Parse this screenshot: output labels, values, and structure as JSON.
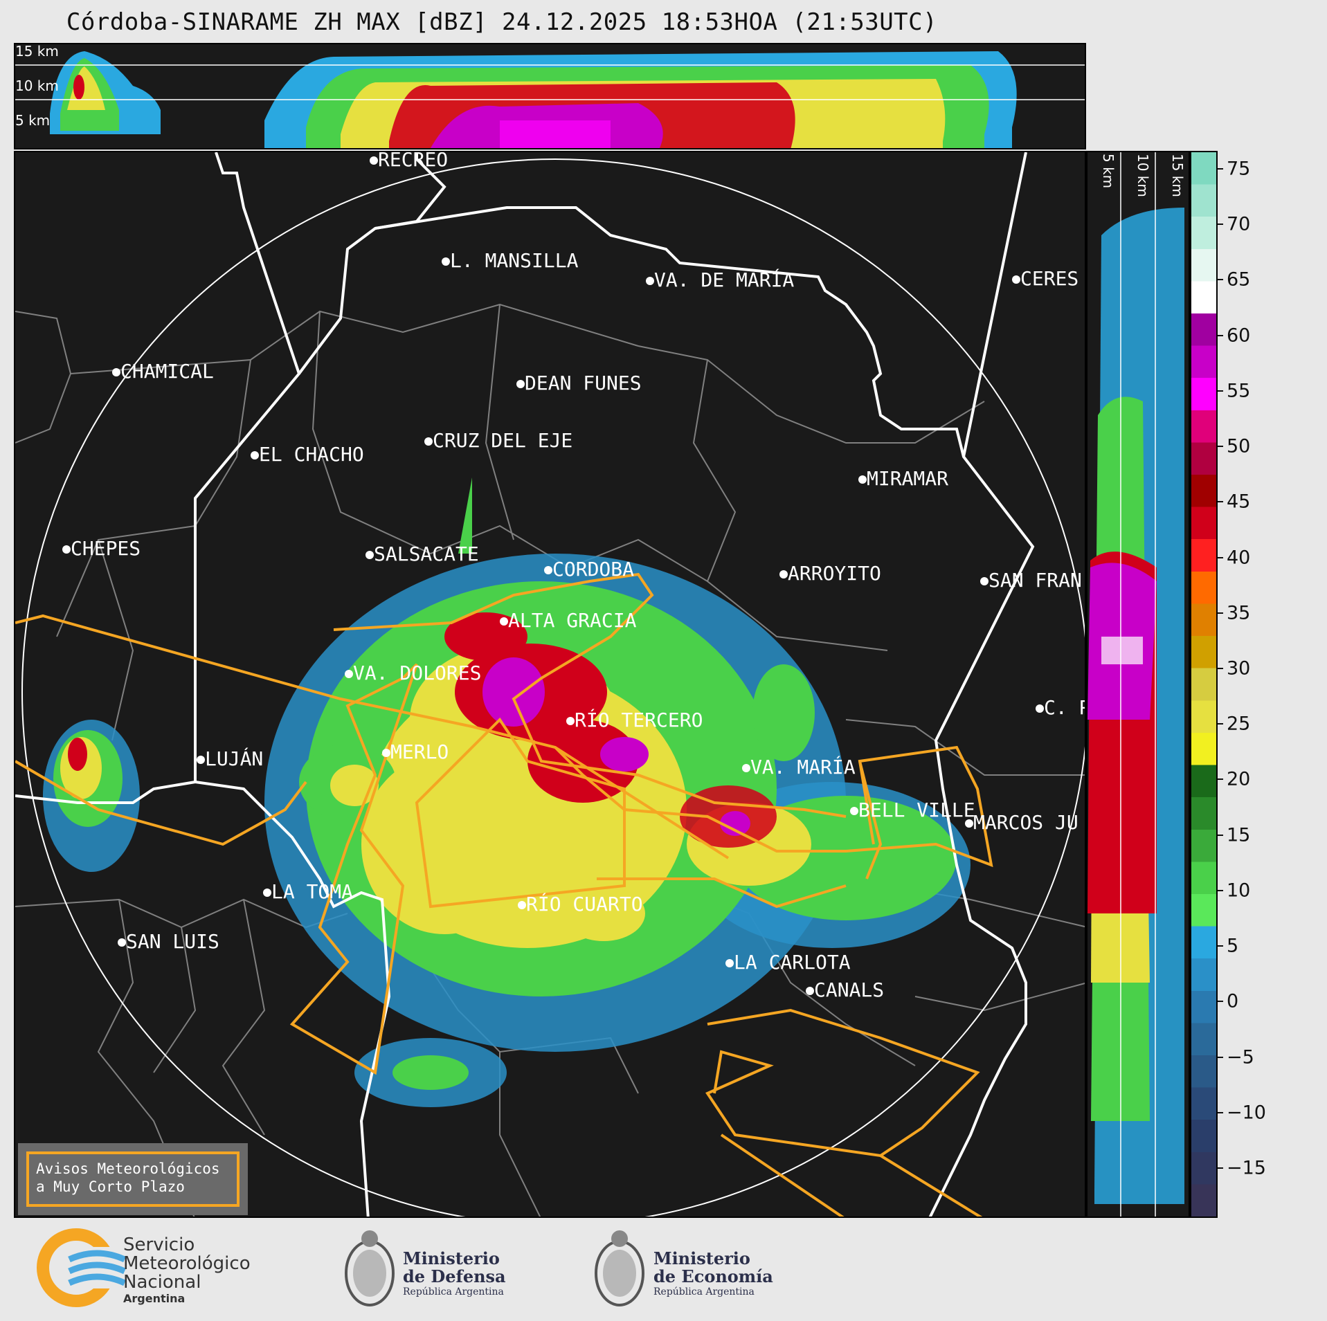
{
  "title": "Córdoba-SINARAME ZH MAX [dBZ] 24.12.2025 18:53HOA (21:53UTC)",
  "top_panel": {
    "altitude_labels": [
      "15 km",
      "10 km",
      "5 km"
    ]
  },
  "side_panel": {
    "altitude_labels": [
      "5 km",
      "10 km",
      "15 km"
    ]
  },
  "colorbar": {
    "ticks": [
      "75",
      "70",
      "65",
      "60",
      "55",
      "50",
      "45",
      "40",
      "35",
      "30",
      "25",
      "20",
      "15",
      "10",
      "5",
      "0",
      "−5",
      "−10",
      "−15"
    ],
    "colors": [
      "#7fd9c0",
      "#9fe3cf",
      "#bfeede",
      "#e6f7f1",
      "#ffffff",
      "#a000a0",
      "#c800c8",
      "#ff00ff",
      "#e0007a",
      "#b00040",
      "#a00000",
      "#d0001a",
      "#ff2020",
      "#ff6a00",
      "#e08000",
      "#d0a000",
      "#d6cc40",
      "#e6e040",
      "#f2f020",
      "#1a6a1a",
      "#2a8a2a",
      "#3aaa3a",
      "#4ad04a",
      "#5ae85a",
      "#2aa8e0",
      "#2a90c8",
      "#2a7ab0",
      "#2a6a9a",
      "#2a5a88",
      "#2a4a78",
      "#2a3e6a",
      "#303860",
      "#383458"
    ]
  },
  "cities": [
    {
      "name": "RECREO"
    },
    {
      "name": "L. MANSILLA"
    },
    {
      "name": "VA. DE MARÍA"
    },
    {
      "name": "CERES"
    },
    {
      "name": "CHAMICAL"
    },
    {
      "name": "DEAN FUNES"
    },
    {
      "name": "CRUZ DEL EJE"
    },
    {
      "name": "EL CHACHO"
    },
    {
      "name": "MIRAMAR"
    },
    {
      "name": "CHEPES"
    },
    {
      "name": "SALSACATE"
    },
    {
      "name": "CORDOBA"
    },
    {
      "name": "ARROYITO"
    },
    {
      "name": "SAN FRAN"
    },
    {
      "name": "ALTA GRACIA"
    },
    {
      "name": "VA. DOLORES"
    },
    {
      "name": "C. P"
    },
    {
      "name": "RÍO TERCERO"
    },
    {
      "name": "LUJÁN"
    },
    {
      "name": "MERLO"
    },
    {
      "name": "VA. MARÍA"
    },
    {
      "name": "BELL VILLE"
    },
    {
      "name": "MARCOS JU"
    },
    {
      "name": "LA TOMA"
    },
    {
      "name": "RÍO CUARTO"
    },
    {
      "name": "SAN LUIS"
    },
    {
      "name": "LA CARLOTA"
    },
    {
      "name": "CANALS"
    }
  ],
  "avisos": {
    "line1": "Avisos Meteorológicos",
    "line2": "a Muy Corto Plazo"
  },
  "logos": {
    "smn": {
      "line1": "Servicio",
      "line2": "Meteorológico",
      "line3": "Nacional",
      "line4": "Argentina"
    },
    "defensa": {
      "line1": "Ministerio",
      "line2": "de Defensa",
      "line3": "República Argentina"
    },
    "economia": {
      "line1": "Ministerio",
      "line2": "de Economía",
      "line3": "República Argentina"
    }
  },
  "colors": {
    "warning_polygon": "#f5a623",
    "background": "#1a1a1a",
    "boundary": "#ffffff",
    "dept_boundary": "#808080"
  }
}
